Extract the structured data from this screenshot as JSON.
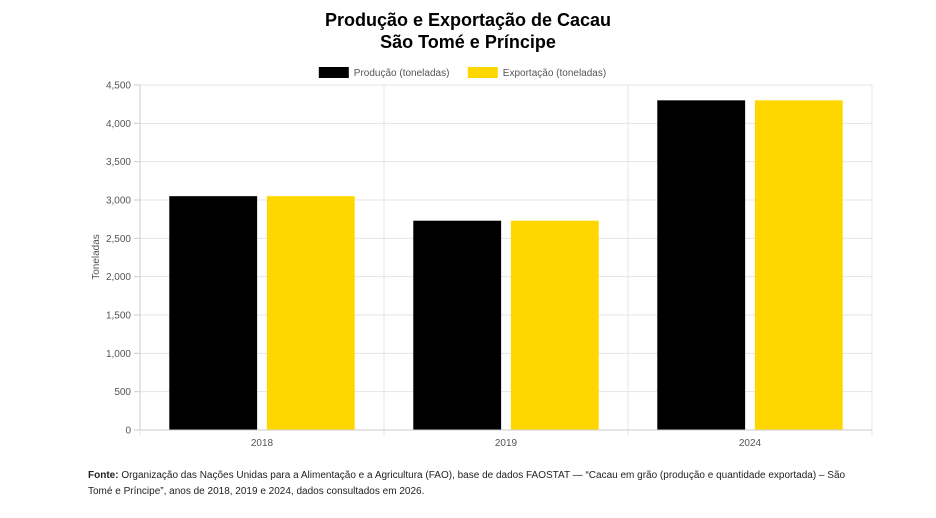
{
  "title": {
    "line1": "Produção e Exportação de Cacau",
    "line2": "São Tomé e Príncipe"
  },
  "chart_data": {
    "type": "bar",
    "categories": [
      "2018",
      "2019",
      "2024"
    ],
    "series": [
      {
        "name": "Produção (toneladas)",
        "color": "#000000",
        "values": [
          3050,
          2730,
          4300
        ]
      },
      {
        "name": "Exportação (toneladas)",
        "color": "#FFD700",
        "values": [
          3050,
          2730,
          4300
        ]
      }
    ],
    "ylabel": "Toneladas",
    "xlabel": "",
    "ylim": [
      0,
      4500
    ],
    "yticks": [
      0,
      500,
      1000,
      1500,
      2000,
      2500,
      3000,
      3500,
      4000,
      4500
    ],
    "ytick_labels": [
      "0",
      "500",
      "1,000",
      "1,500",
      "2,000",
      "2,500",
      "3,000",
      "3,500",
      "4,000",
      "4,500"
    ],
    "grid": true,
    "legend_position": "top-center"
  },
  "note": {
    "label": "Fonte:",
    "text": "Organização das Nações Unidas para a Alimentação e a Agricultura (FAO), base de dados FAOSTAT — “Cacau em grão (produção e quantidade exportada) – São Tomé e Príncipe”, anos de 2018, 2019 e 2024, dados consultados em 2026."
  }
}
